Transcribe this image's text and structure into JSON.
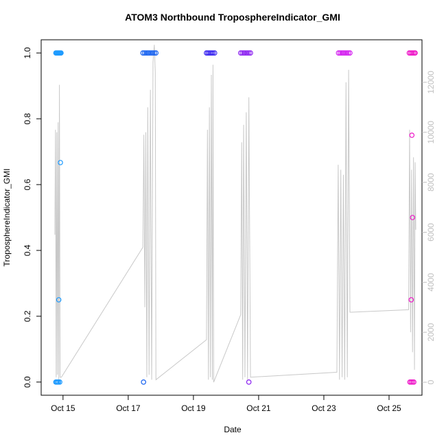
{
  "chart_data": {
    "type": "scatter",
    "title": "ATOM3 Northbound TroposphereIndicator_GMI",
    "x_label": "Date",
    "y_label": "TroposphereIndicator_GMI",
    "xlim": [
      14.33,
      26.01
    ],
    "xticks": [
      {
        "value": 15,
        "label": "Oct 15"
      },
      {
        "value": 17,
        "label": "Oct 17"
      },
      {
        "value": 19,
        "label": "Oct 19"
      },
      {
        "value": 21,
        "label": "Oct 21"
      },
      {
        "value": 23,
        "label": "Oct 23"
      },
      {
        "value": 25,
        "label": "Oct 25"
      }
    ],
    "ylim": [
      -0.04,
      1.04
    ],
    "yticks": [
      {
        "value": 0,
        "label": "0.0"
      },
      0.2,
      0.4,
      0.6,
      0.8,
      {
        "value": 1,
        "label": "1.0"
      }
    ],
    "y2lim": [
      -520,
      13700
    ],
    "y2ticks": [
      0,
      2000,
      4000,
      6000,
      8000,
      10000,
      12000
    ],
    "y2_color": "#bfbfbf",
    "series": [
      {
        "type": "line",
        "axis": "y2",
        "color": "#c8c8c8",
        "x": [
          14.75,
          14.77,
          14.79,
          14.81,
          14.83,
          14.85,
          14.87,
          14.89,
          14.91,
          14.95,
          17.45,
          17.48,
          17.51,
          17.54,
          17.57,
          17.6,
          17.64,
          17.68,
          17.72,
          17.76,
          17.8,
          17.83,
          17.85,
          19.4,
          19.43,
          19.46,
          19.49,
          19.52,
          19.55,
          19.58,
          19.6,
          19.62,
          20.45,
          20.48,
          20.51,
          20.54,
          20.58,
          20.62,
          20.66,
          20.7,
          20.75,
          23.4,
          23.44,
          23.48,
          23.52,
          23.56,
          23.6,
          23.64,
          23.68,
          23.72,
          23.76,
          23.8,
          23.85,
          25.6,
          25.63,
          25.66,
          25.69,
          25.72,
          25.75,
          25.78,
          25.8,
          25.82
        ],
        "values": [
          5900,
          10100,
          200,
          10000,
          300,
          10400,
          100,
          11900,
          200,
          200,
          5400,
          9900,
          3000,
          10000,
          200,
          11000,
          300,
          11700,
          100,
          12800,
          13500,
          12400,
          100,
          1700,
          10100,
          100,
          11000,
          200,
          12300,
          100,
          12700,
          0,
          2700,
          9600,
          100,
          10300,
          200,
          10800,
          100,
          11400,
          200,
          400,
          8700,
          100,
          8500,
          200,
          8300,
          100,
          12000,
          200,
          12500,
          2800,
          2800,
          2900,
          10100,
          2000,
          8500,
          1200,
          9000,
          500,
          8800,
          6100
        ]
      },
      {
        "type": "scatter",
        "color": "#1e9bff",
        "x": [
          14.78,
          14.8,
          14.82,
          14.84,
          14.86,
          14.88,
          14.9,
          14.92,
          14.94,
          14.78,
          14.8,
          14.83,
          14.86,
          14.9,
          14.87,
          14.92
        ],
        "values": [
          1,
          1,
          1,
          1,
          1,
          1,
          1,
          1,
          1,
          0,
          0,
          0,
          0,
          0,
          0.25,
          0.667
        ]
      },
      {
        "type": "scatter",
        "color": "#1460f0",
        "x": [
          17.45,
          17.5,
          17.55,
          17.6,
          17.65,
          17.7,
          17.75,
          17.8,
          17.85,
          17.47
        ],
        "values": [
          1,
          1,
          1,
          1,
          1,
          1,
          1,
          1,
          1,
          0
        ]
      },
      {
        "type": "scatter",
        "color": "#3c28f0",
        "x": [
          19.4,
          19.44,
          19.48,
          19.52,
          19.56,
          19.6,
          19.65
        ],
        "values": [
          1,
          1,
          1,
          1,
          1,
          1,
          1
        ]
      },
      {
        "type": "scatter",
        "color": "#8a1ff0",
        "x": [
          20.45,
          20.5,
          20.55,
          20.6,
          20.65,
          20.7,
          20.75,
          20.7
        ],
        "values": [
          1,
          1,
          1,
          1,
          1,
          1,
          1,
          0
        ]
      },
      {
        "type": "scatter",
        "color": "#d21bef",
        "x": [
          23.45,
          23.5,
          23.55,
          23.6,
          23.65,
          23.7,
          23.75,
          23.8
        ],
        "values": [
          1,
          1,
          1,
          1,
          1,
          1,
          1,
          1
        ]
      },
      {
        "type": "scatter",
        "color": "#ee16c8",
        "x": [
          25.62,
          25.66,
          25.7,
          25.74,
          25.78,
          25.8,
          25.64,
          25.68,
          25.72,
          25.76,
          25.7,
          25.72,
          25.68
        ],
        "values": [
          1,
          1,
          1,
          1,
          1,
          1,
          0,
          0,
          0,
          0,
          0.75,
          0.5,
          0.25
        ]
      }
    ]
  }
}
